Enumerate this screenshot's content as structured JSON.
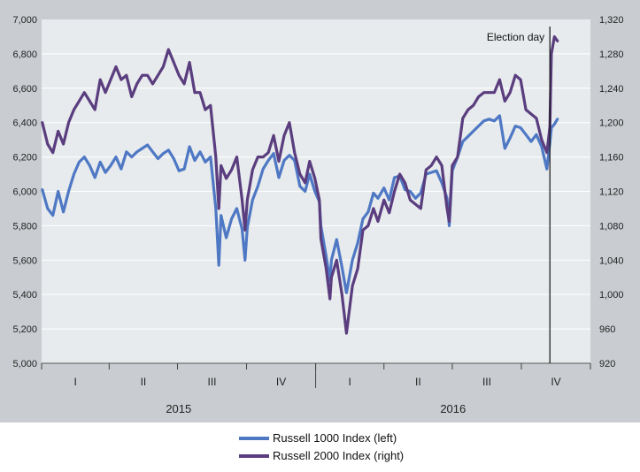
{
  "chart_data": {
    "type": "line",
    "title": "",
    "xlabel": "",
    "ylabel": "",
    "x_periods": [
      "I",
      "II",
      "III",
      "IV",
      "I",
      "II",
      "III",
      "IV"
    ],
    "x_years": [
      "2015",
      "2016"
    ],
    "left_axis": {
      "ylim": [
        5000,
        7000
      ],
      "ticks": [
        "5,000",
        "5,200",
        "5,400",
        "5,600",
        "5,800",
        "6,000",
        "6,200",
        "6,400",
        "6,600",
        "6,800",
        "7,000"
      ]
    },
    "right_axis": {
      "ylim": [
        920,
        1320
      ],
      "ticks": [
        "920",
        "960",
        "1,000",
        "1,040",
        "1,080",
        "1,120",
        "1,160",
        "1,200",
        "1,240",
        "1,280",
        "1,320"
      ]
    },
    "annotation": {
      "label": "Election day",
      "date": "2016-11-08"
    },
    "series": [
      {
        "name": "Russell 1000 Index (left)",
        "axis": "left",
        "color": "#4f78c4",
        "points": [
          [
            "2015-01-02",
            6010
          ],
          [
            "2015-01-09",
            5900
          ],
          [
            "2015-01-16",
            5860
          ],
          [
            "2015-01-23",
            6000
          ],
          [
            "2015-01-30",
            5880
          ],
          [
            "2015-02-06",
            6000
          ],
          [
            "2015-02-13",
            6100
          ],
          [
            "2015-02-20",
            6170
          ],
          [
            "2015-02-27",
            6200
          ],
          [
            "2015-03-06",
            6150
          ],
          [
            "2015-03-13",
            6080
          ],
          [
            "2015-03-20",
            6170
          ],
          [
            "2015-03-27",
            6110
          ],
          [
            "2015-04-03",
            6150
          ],
          [
            "2015-04-10",
            6200
          ],
          [
            "2015-04-17",
            6130
          ],
          [
            "2015-04-24",
            6230
          ],
          [
            "2015-05-01",
            6200
          ],
          [
            "2015-05-08",
            6230
          ],
          [
            "2015-05-15",
            6250
          ],
          [
            "2015-05-22",
            6270
          ],
          [
            "2015-05-29",
            6230
          ],
          [
            "2015-06-05",
            6190
          ],
          [
            "2015-06-12",
            6220
          ],
          [
            "2015-06-19",
            6240
          ],
          [
            "2015-06-26",
            6190
          ],
          [
            "2015-07-03",
            6120
          ],
          [
            "2015-07-10",
            6130
          ],
          [
            "2015-07-17",
            6260
          ],
          [
            "2015-07-24",
            6180
          ],
          [
            "2015-07-31",
            6230
          ],
          [
            "2015-08-07",
            6170
          ],
          [
            "2015-08-14",
            6200
          ],
          [
            "2015-08-21",
            5900
          ],
          [
            "2015-08-25",
            5570
          ],
          [
            "2015-08-28",
            5860
          ],
          [
            "2015-09-04",
            5730
          ],
          [
            "2015-09-11",
            5840
          ],
          [
            "2015-09-18",
            5900
          ],
          [
            "2015-09-25",
            5780
          ],
          [
            "2015-09-29",
            5600
          ],
          [
            "2015-10-02",
            5790
          ],
          [
            "2015-10-09",
            5950
          ],
          [
            "2015-10-16",
            6030
          ],
          [
            "2015-10-23",
            6130
          ],
          [
            "2015-10-30",
            6180
          ],
          [
            "2015-11-06",
            6220
          ],
          [
            "2015-11-13",
            6080
          ],
          [
            "2015-11-20",
            6180
          ],
          [
            "2015-11-27",
            6210
          ],
          [
            "2015-12-04",
            6180
          ],
          [
            "2015-12-11",
            6030
          ],
          [
            "2015-12-18",
            6000
          ],
          [
            "2015-12-24",
            6100
          ],
          [
            "2015-12-31",
            6000
          ],
          [
            "2016-01-06",
            5940
          ],
          [
            "2016-01-08",
            5800
          ],
          [
            "2016-01-15",
            5620
          ],
          [
            "2016-01-20",
            5480
          ],
          [
            "2016-01-22",
            5600
          ],
          [
            "2016-01-29",
            5720
          ],
          [
            "2016-02-05",
            5560
          ],
          [
            "2016-02-11",
            5410
          ],
          [
            "2016-02-19",
            5600
          ],
          [
            "2016-02-26",
            5700
          ],
          [
            "2016-03-04",
            5840
          ],
          [
            "2016-03-11",
            5880
          ],
          [
            "2016-03-18",
            5990
          ],
          [
            "2016-03-24",
            5960
          ],
          [
            "2016-04-01",
            6020
          ],
          [
            "2016-04-08",
            5950
          ],
          [
            "2016-04-15",
            6080
          ],
          [
            "2016-04-22",
            6090
          ],
          [
            "2016-04-29",
            6010
          ],
          [
            "2016-05-06",
            6000
          ],
          [
            "2016-05-13",
            5960
          ],
          [
            "2016-05-20",
            5990
          ],
          [
            "2016-05-27",
            6100
          ],
          [
            "2016-06-03",
            6110
          ],
          [
            "2016-06-10",
            6120
          ],
          [
            "2016-06-17",
            6050
          ],
          [
            "2016-06-24",
            5960
          ],
          [
            "2016-06-27",
            5800
          ],
          [
            "2016-07-01",
            6120
          ],
          [
            "2016-07-08",
            6200
          ],
          [
            "2016-07-15",
            6290
          ],
          [
            "2016-07-22",
            6320
          ],
          [
            "2016-07-29",
            6350
          ],
          [
            "2016-08-05",
            6380
          ],
          [
            "2016-08-12",
            6410
          ],
          [
            "2016-08-19",
            6420
          ],
          [
            "2016-08-26",
            6410
          ],
          [
            "2016-09-02",
            6440
          ],
          [
            "2016-09-09",
            6250
          ],
          [
            "2016-09-16",
            6310
          ],
          [
            "2016-09-23",
            6380
          ],
          [
            "2016-09-30",
            6370
          ],
          [
            "2016-10-07",
            6330
          ],
          [
            "2016-10-14",
            6290
          ],
          [
            "2016-10-21",
            6330
          ],
          [
            "2016-10-28",
            6260
          ],
          [
            "2016-11-04",
            6130
          ],
          [
            "2016-11-08",
            6280
          ],
          [
            "2016-11-10",
            6370
          ],
          [
            "2016-11-14",
            6390
          ],
          [
            "2016-11-18",
            6420
          ]
        ]
      },
      {
        "name": "Russell 2000 Index (right)",
        "axis": "right",
        "color": "#5a3d7e",
        "points": [
          [
            "2015-01-02",
            1200
          ],
          [
            "2015-01-09",
            1175
          ],
          [
            "2015-01-16",
            1165
          ],
          [
            "2015-01-23",
            1190
          ],
          [
            "2015-01-30",
            1175
          ],
          [
            "2015-02-06",
            1200
          ],
          [
            "2015-02-13",
            1215
          ],
          [
            "2015-02-20",
            1225
          ],
          [
            "2015-02-27",
            1235
          ],
          [
            "2015-03-06",
            1225
          ],
          [
            "2015-03-13",
            1215
          ],
          [
            "2015-03-20",
            1250
          ],
          [
            "2015-03-27",
            1235
          ],
          [
            "2015-04-03",
            1250
          ],
          [
            "2015-04-10",
            1265
          ],
          [
            "2015-04-17",
            1250
          ],
          [
            "2015-04-24",
            1255
          ],
          [
            "2015-05-01",
            1230
          ],
          [
            "2015-05-08",
            1245
          ],
          [
            "2015-05-15",
            1255
          ],
          [
            "2015-05-22",
            1255
          ],
          [
            "2015-05-29",
            1245
          ],
          [
            "2015-06-05",
            1255
          ],
          [
            "2015-06-12",
            1265
          ],
          [
            "2015-06-19",
            1285
          ],
          [
            "2015-06-26",
            1270
          ],
          [
            "2015-07-03",
            1255
          ],
          [
            "2015-07-10",
            1245
          ],
          [
            "2015-07-17",
            1270
          ],
          [
            "2015-07-24",
            1235
          ],
          [
            "2015-07-31",
            1235
          ],
          [
            "2015-08-07",
            1215
          ],
          [
            "2015-08-14",
            1220
          ],
          [
            "2015-08-21",
            1160
          ],
          [
            "2015-08-25",
            1100
          ],
          [
            "2015-08-28",
            1150
          ],
          [
            "2015-09-04",
            1135
          ],
          [
            "2015-09-11",
            1145
          ],
          [
            "2015-09-18",
            1160
          ],
          [
            "2015-09-25",
            1110
          ],
          [
            "2015-09-29",
            1075
          ],
          [
            "2015-10-02",
            1110
          ],
          [
            "2015-10-09",
            1145
          ],
          [
            "2015-10-16",
            1160
          ],
          [
            "2015-10-23",
            1160
          ],
          [
            "2015-10-30",
            1165
          ],
          [
            "2015-11-06",
            1185
          ],
          [
            "2015-11-13",
            1155
          ],
          [
            "2015-11-20",
            1185
          ],
          [
            "2015-11-27",
            1200
          ],
          [
            "2015-12-04",
            1165
          ],
          [
            "2015-12-11",
            1140
          ],
          [
            "2015-12-18",
            1130
          ],
          [
            "2015-12-24",
            1155
          ],
          [
            "2015-12-31",
            1135
          ],
          [
            "2016-01-06",
            1110
          ],
          [
            "2016-01-08",
            1065
          ],
          [
            "2016-01-15",
            1030
          ],
          [
            "2016-01-20",
            995
          ],
          [
            "2016-01-22",
            1020
          ],
          [
            "2016-01-29",
            1040
          ],
          [
            "2016-02-05",
            1000
          ],
          [
            "2016-02-11",
            955
          ],
          [
            "2016-02-19",
            1010
          ],
          [
            "2016-02-26",
            1030
          ],
          [
            "2016-03-04",
            1075
          ],
          [
            "2016-03-11",
            1080
          ],
          [
            "2016-03-18",
            1100
          ],
          [
            "2016-03-24",
            1085
          ],
          [
            "2016-04-01",
            1110
          ],
          [
            "2016-04-08",
            1095
          ],
          [
            "2016-04-15",
            1120
          ],
          [
            "2016-04-22",
            1140
          ],
          [
            "2016-04-29",
            1130
          ],
          [
            "2016-05-06",
            1110
          ],
          [
            "2016-05-13",
            1105
          ],
          [
            "2016-05-20",
            1100
          ],
          [
            "2016-05-27",
            1145
          ],
          [
            "2016-06-03",
            1150
          ],
          [
            "2016-06-10",
            1160
          ],
          [
            "2016-06-17",
            1150
          ],
          [
            "2016-06-24",
            1100
          ],
          [
            "2016-06-27",
            1085
          ],
          [
            "2016-07-01",
            1150
          ],
          [
            "2016-07-08",
            1160
          ],
          [
            "2016-07-15",
            1205
          ],
          [
            "2016-07-22",
            1215
          ],
          [
            "2016-07-29",
            1220
          ],
          [
            "2016-08-05",
            1230
          ],
          [
            "2016-08-12",
            1235
          ],
          [
            "2016-08-19",
            1235
          ],
          [
            "2016-08-26",
            1235
          ],
          [
            "2016-09-02",
            1250
          ],
          [
            "2016-09-09",
            1225
          ],
          [
            "2016-09-16",
            1235
          ],
          [
            "2016-09-23",
            1255
          ],
          [
            "2016-09-30",
            1250
          ],
          [
            "2016-10-07",
            1215
          ],
          [
            "2016-10-14",
            1210
          ],
          [
            "2016-10-21",
            1205
          ],
          [
            "2016-10-28",
            1180
          ],
          [
            "2016-11-04",
            1165
          ],
          [
            "2016-11-08",
            1195
          ],
          [
            "2016-11-10",
            1280
          ],
          [
            "2016-11-14",
            1300
          ],
          [
            "2016-11-18",
            1295
          ]
        ]
      }
    ]
  }
}
